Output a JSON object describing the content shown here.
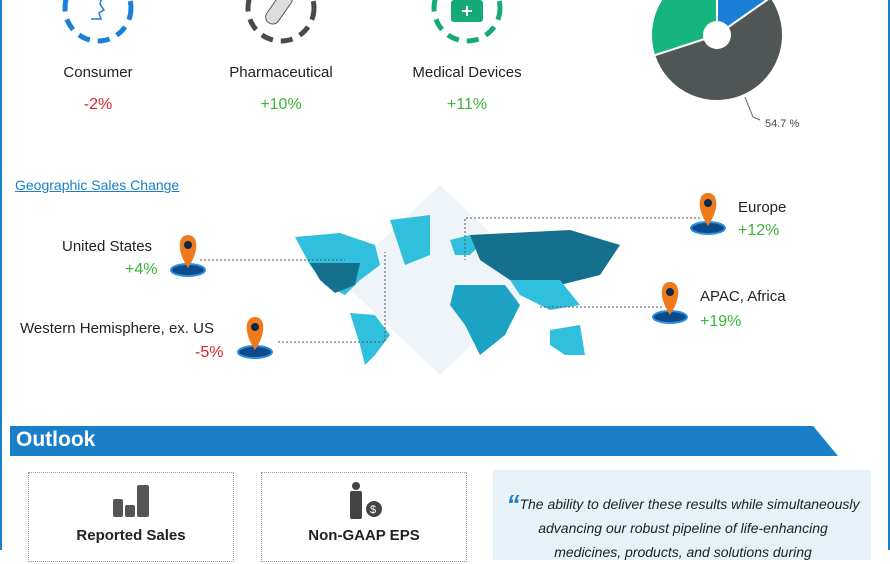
{
  "segments": [
    {
      "label": "Consumer",
      "change": "-2%",
      "icon": "person-face-icon",
      "color": "#1a7fd6"
    },
    {
      "label": "Pharmaceutical",
      "change": "+10%",
      "icon": "pill-icon",
      "color": "#4a4a4a"
    },
    {
      "label": "Medical Devices",
      "change": "+11%",
      "icon": "medical-kit-icon",
      "color": "#16a97a"
    }
  ],
  "chart_data": {
    "type": "pie",
    "donut": true,
    "slices": [
      {
        "value": 54.7,
        "label": "54.7 %",
        "color": "#505555"
      },
      {
        "value": 30,
        "color": "#16b47e"
      },
      {
        "value": 15.3,
        "color": "#1a7fd6"
      }
    ]
  },
  "geo": {
    "title": "Geographic Sales Change",
    "regions": [
      {
        "name": "United States",
        "change": "+4%"
      },
      {
        "name": "Western Hemisphere, ex. US",
        "change": "-5%"
      },
      {
        "name": "Europe",
        "change": "+12%"
      },
      {
        "name": "APAC, Africa",
        "change": "+19%"
      }
    ]
  },
  "outlook": {
    "title": "Outlook",
    "cards": [
      {
        "label": "Reported Sales",
        "icon": "coin-stacks-icon"
      },
      {
        "label": "Non-GAAP EPS",
        "icon": "person-dollar-icon"
      }
    ],
    "quote_mark": "“",
    "quote": "The ability to deliver these results while simultaneously advancing our robust pipeline of life-enhancing medicines, products, and solutions during"
  },
  "colors": {
    "accent": "#1a7fc9",
    "positive": "#3ab53a",
    "negative": "#d9262c",
    "map_dark": "#15708e",
    "map_light": "#30c0dd",
    "pin": "#f07a1a"
  }
}
